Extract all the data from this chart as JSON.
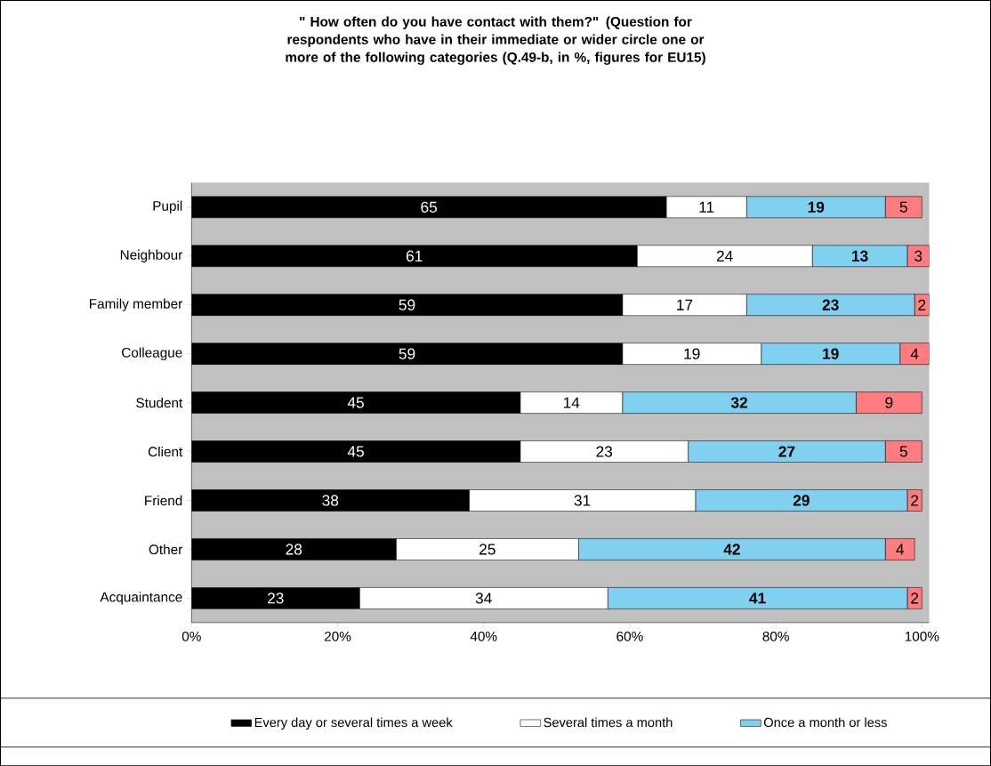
{
  "chart_data": {
    "type": "bar",
    "orientation": "horizontal",
    "stacked": true,
    "title": "\" How often do you have contact with them?\" (Question for respondents who have in their immediate or wider circle one or more of the following categories (Q.49-b, in %, figures for EU15)",
    "categories": [
      "Pupil",
      "Neighbour",
      "Family member",
      "Colleague",
      "Student",
      "Client",
      "Friend",
      "Other",
      "Acquaintance"
    ],
    "series": [
      {
        "name": "Every day or several times a week",
        "color": "#000000",
        "values": [
          65,
          61,
          59,
          59,
          45,
          45,
          38,
          28,
          23
        ]
      },
      {
        "name": "Several times a month",
        "color": "#ffffff",
        "values": [
          11,
          24,
          17,
          19,
          14,
          23,
          31,
          25,
          34
        ]
      },
      {
        "name": "Once a month or less",
        "color": "#80d0f0",
        "values": [
          19,
          13,
          23,
          19,
          32,
          27,
          29,
          42,
          41
        ]
      },
      {
        "color": "#ff7c80",
        "values": [
          5,
          3,
          2,
          4,
          9,
          5,
          2,
          4,
          2
        ]
      }
    ],
    "xlim": [
      0,
      101
    ],
    "xticks": [
      {
        "value": 0,
        "label": "0%"
      },
      {
        "value": 20,
        "label": "20%"
      },
      {
        "value": 40,
        "label": "40%"
      },
      {
        "value": 60,
        "label": "60%"
      },
      {
        "value": 80,
        "label": "80%"
      },
      {
        "value": 100,
        "label": "100%"
      }
    ],
    "data_labels": true,
    "legend": "bottom"
  }
}
